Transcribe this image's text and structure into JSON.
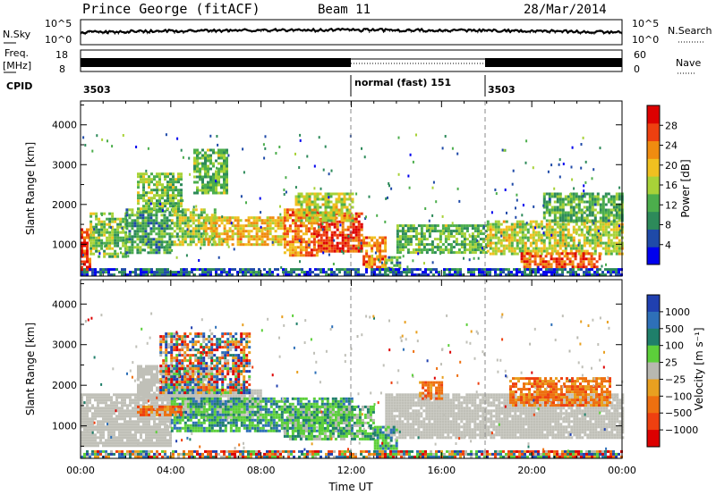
{
  "header": {
    "station": "Prince George (fitACF)",
    "beam": "Beam 11",
    "date": "28/Mar/2014"
  },
  "strip_sky": {
    "label_left": "N.Sky",
    "label_right": "N.Search",
    "ticks_left": [
      "10^5",
      "10^0"
    ],
    "ticks_right": [
      "10^5",
      "10^0"
    ]
  },
  "strip_freq": {
    "label_left_1": "Freq.",
    "label_left_2": "[MHz]",
    "label_right": "Nave",
    "ticks_left": [
      "18",
      "8"
    ],
    "ticks_right": [
      "60",
      "0"
    ]
  },
  "strip_cpid": {
    "label": "CPID",
    "segments": [
      {
        "text": "3503",
        "start_hour": 0
      },
      {
        "text": "normal (fast) 151",
        "start_hour": 12
      },
      {
        "text": "3503",
        "start_hour": 18
      }
    ]
  },
  "colors": {
    "power_scale": [
      "#0000ee",
      "#1f4aa8",
      "#2d8a5a",
      "#4cae4c",
      "#a8d238",
      "#f0c020",
      "#f08c10",
      "#ee4010",
      "#dd0000"
    ],
    "velocity_scale": [
      "#2040b0",
      "#2e70b8",
      "#1f7f6a",
      "#5ccf3a",
      "#b8b8b0",
      "#e8a020",
      "#ee7010",
      "#ee4010",
      "#dd0000"
    ],
    "ground_scatter": "#c0c0b8"
  },
  "chart_data": [
    {
      "type": "heatmap",
      "name": "power",
      "xlabel": "",
      "ylabel": "Slant Range [km]",
      "xlim": [
        0,
        24
      ],
      "ylim": [
        200,
        4600
      ],
      "yticks": [
        "1000",
        "2000",
        "3000",
        "4000"
      ],
      "colorbar": {
        "label": "Power [dB]",
        "ticks": [
          "4",
          "8",
          "12",
          "16",
          "20",
          "24",
          "28"
        ],
        "range": [
          0,
          32
        ]
      },
      "regions": [
        {
          "t0": 0.0,
          "t1": 0.4,
          "r0": 350,
          "r1": 1400,
          "level": 27
        },
        {
          "t0": 0.4,
          "t1": 2.0,
          "r0": 700,
          "r1": 1800,
          "level": 14
        },
        {
          "t0": 2.0,
          "t1": 4.0,
          "r0": 800,
          "r1": 1900,
          "level": 11
        },
        {
          "t0": 4.0,
          "t1": 6.0,
          "r0": 1000,
          "r1": 1900,
          "level": 15
        },
        {
          "t0": 5.5,
          "t1": 9.0,
          "r0": 1000,
          "r1": 1700,
          "level": 20
        },
        {
          "t0": 9.0,
          "t1": 10.5,
          "r0": 700,
          "r1": 1900,
          "level": 24
        },
        {
          "t0": 10.5,
          "t1": 12.5,
          "r0": 800,
          "r1": 1800,
          "level": 27
        },
        {
          "t0": 12.5,
          "t1": 13.5,
          "r0": 450,
          "r1": 1200,
          "level": 24
        },
        {
          "t0": 13.5,
          "t1": 14.2,
          "r0": 300,
          "r1": 700,
          "level": 11
        },
        {
          "t0": 14.0,
          "t1": 18.0,
          "r0": 800,
          "r1": 1500,
          "level": 13
        },
        {
          "t0": 18.0,
          "t1": 24.0,
          "r0": 750,
          "r1": 1600,
          "level": 17
        },
        {
          "t0": 19.5,
          "t1": 23.0,
          "r0": 450,
          "r1": 800,
          "level": 26
        },
        {
          "t0": 2.5,
          "t1": 4.5,
          "r0": 1800,
          "r1": 2800,
          "level": 14
        },
        {
          "t0": 5.0,
          "t1": 6.5,
          "r0": 2300,
          "r1": 3400,
          "level": 13
        },
        {
          "t0": 9.5,
          "t1": 12.0,
          "r0": 1600,
          "r1": 2300,
          "level": 17
        },
        {
          "t0": 20.5,
          "t1": 24.0,
          "r0": 1600,
          "r1": 2300,
          "level": 12
        },
        {
          "t0": 0.0,
          "t1": 24.0,
          "r0": 250,
          "r1": 400,
          "level": 6
        }
      ]
    },
    {
      "type": "heatmap",
      "name": "velocity",
      "xlabel": "Time UT",
      "ylabel": "Slant Range [km]",
      "xlim": [
        0,
        24
      ],
      "ylim": [
        200,
        4600
      ],
      "xticks": [
        "00:00",
        "04:00",
        "08:00",
        "12:00",
        "16:00",
        "20:00",
        "00:00"
      ],
      "yticks": [
        "1000",
        "2000",
        "3000",
        "4000"
      ],
      "colorbar": {
        "label": "Velocity [m s⁻¹]",
        "ticks": [
          "1000",
          "500",
          "100",
          "25",
          "−25",
          "−100",
          "−500",
          "−1000"
        ]
      },
      "regions": [
        {
          "t0": 0.0,
          "t1": 4.0,
          "r0": 500,
          "r1": 1800,
          "kind": "ground"
        },
        {
          "t0": 4.0,
          "t1": 8.0,
          "r0": 1200,
          "r1": 1900,
          "kind": "ground"
        },
        {
          "t0": 13.5,
          "t1": 24.0,
          "r0": 700,
          "r1": 1800,
          "kind": "ground"
        },
        {
          "t0": 2.5,
          "t1": 6.0,
          "r0": 1700,
          "r1": 2500,
          "kind": "ground"
        },
        {
          "t0": 4.0,
          "t1": 12.0,
          "r0": 900,
          "r1": 1700,
          "kind": "toward"
        },
        {
          "t0": 9.0,
          "t1": 13.0,
          "r0": 700,
          "r1": 1500,
          "kind": "slow"
        },
        {
          "t0": 3.5,
          "t1": 7.5,
          "r0": 1800,
          "r1": 3300,
          "kind": "mixed"
        },
        {
          "t0": 2.5,
          "t1": 4.5,
          "r0": 1300,
          "r1": 1500,
          "kind": "away"
        },
        {
          "t0": 13.0,
          "t1": 14.0,
          "r0": 450,
          "r1": 1000,
          "kind": "toward"
        },
        {
          "t0": 15.0,
          "t1": 16.0,
          "r0": 1700,
          "r1": 2100,
          "kind": "away"
        },
        {
          "t0": 19.0,
          "t1": 23.5,
          "r0": 1500,
          "r1": 2200,
          "kind": "away"
        },
        {
          "t0": 0.0,
          "t1": 24.0,
          "r0": 250,
          "r1": 400,
          "kind": "mixed"
        }
      ]
    }
  ]
}
